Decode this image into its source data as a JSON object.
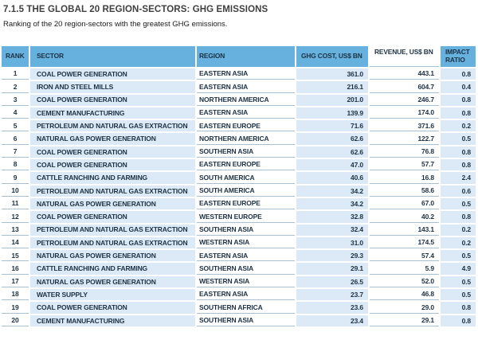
{
  "title": "7.1.5 THE GLOBAL 20 REGION-SECTORS: GHG EMISSIONS",
  "subtitle": "Ranking of the 20 region-sectors with the greatest GHG emissions.",
  "colors": {
    "header_blue": "#67b1de",
    "band_light_blue": "#dbeaf6",
    "row_border": "#a9c0d2",
    "table_text": "#1d3245",
    "title_text": "#3f3f3f"
  },
  "table": {
    "columns": [
      "RANK",
      "SECTOR",
      "REGION",
      "GHG COST, US$ BN",
      "REVENUE, US$ BN",
      "IMPACT RATIO"
    ],
    "rows": [
      [
        "1",
        "COAL POWER GENERATION",
        "EASTERN ASIA",
        "361.0",
        "443.1",
        "0.8"
      ],
      [
        "2",
        "IRON AND STEEL MILLS",
        "EASTERN ASIA",
        "216.1",
        "604.7",
        "0.4"
      ],
      [
        "3",
        "COAL POWER GENERATION",
        "NORTHERN AMERICA",
        "201.0",
        "246.7",
        "0.8"
      ],
      [
        "4",
        "CEMENT MANUFACTURING",
        "EASTERN ASIA",
        "139.9",
        "174.0",
        "0.8"
      ],
      [
        "5",
        "PETROLEUM AND NATURAL GAS EXTRACTION",
        "EASTERN EUROPE",
        "71.6",
        "371.6",
        "0.2"
      ],
      [
        "6",
        "NATURAL GAS POWER GENERATION",
        "NORTHERN AMERICA",
        "62.6",
        "122.7",
        "0.5"
      ],
      [
        "7",
        "COAL POWER GENERATION",
        "SOUTHERN ASIA",
        "62.6",
        "76.8",
        "0.8"
      ],
      [
        "8",
        "COAL POWER GENERATION",
        "EASTERN EUROPE",
        "47.0",
        "57.7",
        "0.8"
      ],
      [
        "9",
        "CATTLE RANCHING AND FARMING",
        "SOUTH AMERICA",
        "40.6",
        "16.8",
        "2.4"
      ],
      [
        "10",
        "PETROLEUM AND NATURAL GAS EXTRACTION",
        "SOUTH AMERICA",
        "34.2",
        "58.6",
        "0.6"
      ],
      [
        "11",
        "NATURAL GAS POWER GENERATION",
        "EASTERN EUROPE",
        "34.2",
        "67.0",
        "0.5"
      ],
      [
        "12",
        "COAL POWER GENERATION",
        "WESTERN EUROPE",
        "32.8",
        "40.2",
        "0.8"
      ],
      [
        "13",
        "PETROLEUM AND NATURAL GAS EXTRACTION",
        "SOUTHERN ASIA",
        "32.4",
        "143.1",
        "0.2"
      ],
      [
        "14",
        "PETROLEUM AND NATURAL GAS EXTRACTION",
        "WESTERN ASIA",
        "31.0",
        "174.5",
        "0.2"
      ],
      [
        "15",
        "NATURAL GAS POWER GENERATION",
        "EASTERN ASIA",
        "29.3",
        "57.4",
        "0.5"
      ],
      [
        "16",
        "CATTLE RANCHING AND FARMING",
        "SOUTHERN ASIA",
        "29.1",
        "5.9",
        "4.9"
      ],
      [
        "17",
        "NATURAL GAS POWER GENERATION",
        "WESTERN ASIA",
        "26.5",
        "52.0",
        "0.5"
      ],
      [
        "18",
        "WATER SUPPLY",
        "EASTERN ASIA",
        "23.7",
        "46.8",
        "0.5"
      ],
      [
        "19",
        "COAL POWER GENERATION",
        "SOUTHERN AFRICA",
        "23.6",
        "29.0",
        "0.8"
      ],
      [
        "20",
        "CEMENT MANUFACTURING",
        "SOUTHERN ASIA",
        "23.4",
        "29.1",
        "0.8"
      ]
    ]
  }
}
